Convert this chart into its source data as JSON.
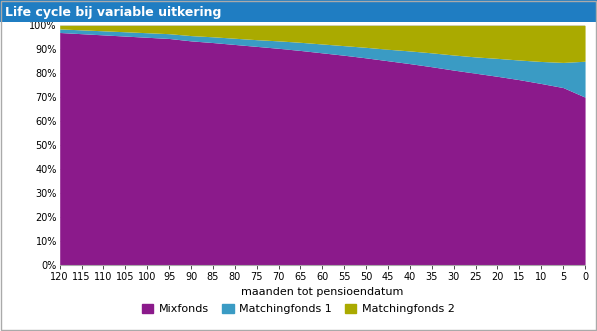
{
  "title": "Life cycle bij variable uitkering",
  "title_bg_color": "#1F7DC2",
  "title_text_color": "#FFFFFF",
  "xlabel": "maanden tot pensioendatum",
  "x_values": [
    120,
    115,
    110,
    105,
    100,
    95,
    90,
    85,
    80,
    75,
    70,
    65,
    60,
    55,
    50,
    45,
    40,
    35,
    30,
    25,
    20,
    15,
    10,
    5,
    0
  ],
  "mixfonds": [
    0.97,
    0.965,
    0.96,
    0.955,
    0.95,
    0.945,
    0.935,
    0.928,
    0.92,
    0.912,
    0.904,
    0.895,
    0.885,
    0.875,
    0.864,
    0.852,
    0.84,
    0.827,
    0.813,
    0.8,
    0.787,
    0.773,
    0.757,
    0.74,
    0.7
  ],
  "matchingfonds1": [
    0.015,
    0.016,
    0.017,
    0.018,
    0.019,
    0.02,
    0.022,
    0.024,
    0.026,
    0.028,
    0.031,
    0.034,
    0.037,
    0.04,
    0.044,
    0.048,
    0.053,
    0.058,
    0.063,
    0.068,
    0.075,
    0.082,
    0.092,
    0.105,
    0.15
  ],
  "matchingfonds2": [
    0.015,
    0.019,
    0.023,
    0.027,
    0.031,
    0.035,
    0.043,
    0.048,
    0.054,
    0.06,
    0.065,
    0.071,
    0.078,
    0.085,
    0.092,
    0.1,
    0.107,
    0.115,
    0.124,
    0.132,
    0.138,
    0.145,
    0.151,
    0.155,
    0.15
  ],
  "color_mixfonds": "#8B1A8B",
  "color_matching1": "#3A9BC4",
  "color_matching2": "#AAAA00",
  "legend_labels": [
    "Mixfonds",
    "Matchingfonds 1",
    "Matchingfonds 2"
  ],
  "border_color": "#AAAAAA",
  "background_color": "#FFFFFF",
  "title_fontsize": 9,
  "tick_fontsize": 7,
  "label_fontsize": 8
}
